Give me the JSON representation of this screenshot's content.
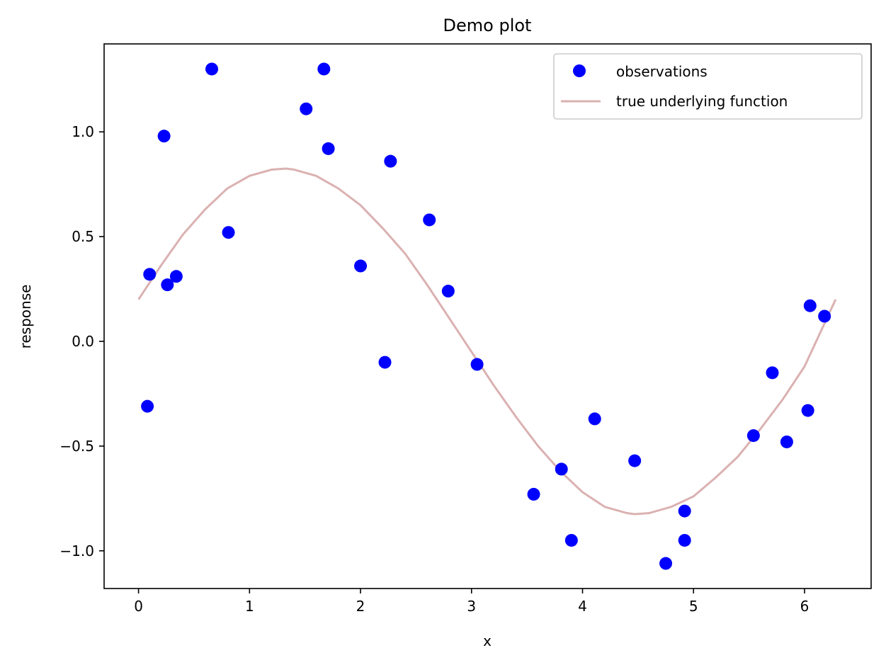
{
  "chart_data": {
    "type": "scatter",
    "title": "Demo plot",
    "xlabel": "x",
    "ylabel": "response",
    "xlim": [
      -0.31,
      6.6
    ],
    "ylim": [
      -1.18,
      1.42
    ],
    "xticks": [
      0,
      1,
      2,
      3,
      4,
      5,
      6
    ],
    "xtick_labels": [
      "0",
      "1",
      "2",
      "3",
      "4",
      "5",
      "6"
    ],
    "yticks": [
      -1.0,
      -0.5,
      0.0,
      0.5,
      1.0
    ],
    "ytick_labels": [
      "−1.0",
      "−0.5",
      "0.0",
      "0.5",
      "1.0"
    ],
    "grid": false,
    "legend_position": "top-right",
    "series": [
      {
        "name": "observations",
        "kind": "scatter",
        "color": "#0000ff",
        "points": [
          [
            0.08,
            -0.31
          ],
          [
            0.1,
            0.32
          ],
          [
            0.23,
            0.98
          ],
          [
            0.26,
            0.27
          ],
          [
            0.34,
            0.31
          ],
          [
            0.66,
            1.3
          ],
          [
            0.81,
            0.52
          ],
          [
            1.51,
            1.11
          ],
          [
            1.67,
            1.3
          ],
          [
            1.71,
            0.92
          ],
          [
            2.0,
            0.36
          ],
          [
            2.22,
            -0.1
          ],
          [
            2.27,
            0.86
          ],
          [
            2.62,
            0.58
          ],
          [
            2.79,
            0.24
          ],
          [
            3.05,
            -0.11
          ],
          [
            3.56,
            -0.73
          ],
          [
            3.81,
            -0.61
          ],
          [
            3.9,
            -0.95
          ],
          [
            4.11,
            -0.37
          ],
          [
            4.47,
            -0.57
          ],
          [
            4.75,
            -1.06
          ],
          [
            4.92,
            -0.81
          ],
          [
            4.92,
            -0.95
          ],
          [
            5.54,
            -0.45
          ],
          [
            5.71,
            -0.15
          ],
          [
            5.84,
            -0.48
          ],
          [
            6.03,
            -0.33
          ],
          [
            6.05,
            0.17
          ],
          [
            6.18,
            0.12
          ]
        ]
      },
      {
        "name": "true underlying function",
        "kind": "line",
        "color": "#dbb1b1",
        "x": [
          0.0,
          0.2,
          0.4,
          0.6,
          0.8,
          1.0,
          1.2,
          1.33,
          1.4,
          1.6,
          1.8,
          2.0,
          2.2,
          2.4,
          2.6,
          2.8,
          3.0,
          3.2,
          3.4,
          3.6,
          3.8,
          4.0,
          4.2,
          4.4,
          4.47,
          4.6,
          4.8,
          5.0,
          5.2,
          5.4,
          5.6,
          5.8,
          6.0,
          6.28
        ],
        "y": [
          0.2,
          0.36,
          0.51,
          0.63,
          0.73,
          0.79,
          0.82,
          0.825,
          0.82,
          0.79,
          0.73,
          0.65,
          0.54,
          0.42,
          0.27,
          0.11,
          -0.05,
          -0.21,
          -0.36,
          -0.5,
          -0.62,
          -0.72,
          -0.79,
          -0.82,
          -0.825,
          -0.82,
          -0.79,
          -0.74,
          -0.65,
          -0.55,
          -0.42,
          -0.28,
          -0.12,
          0.2
        ]
      }
    ]
  }
}
